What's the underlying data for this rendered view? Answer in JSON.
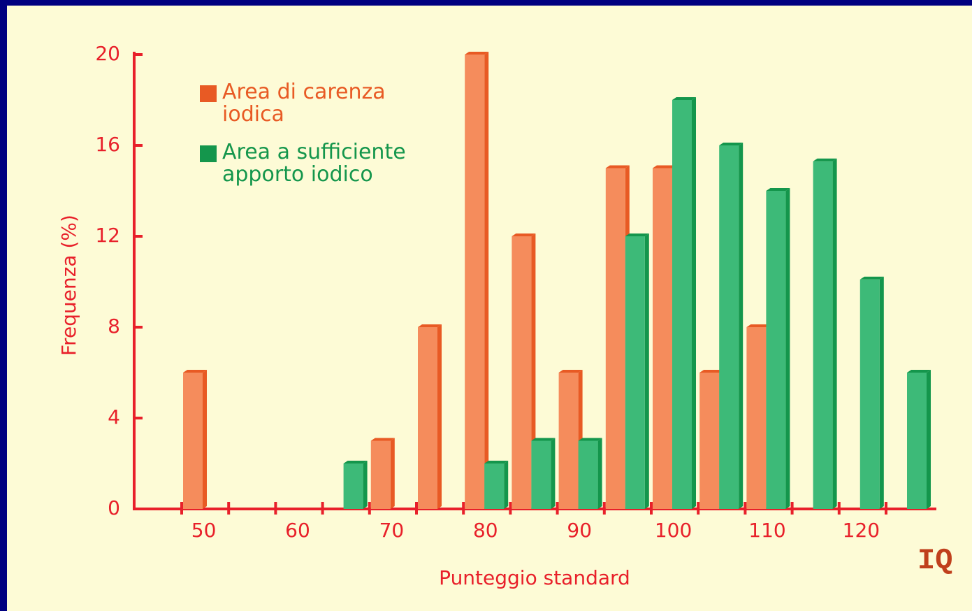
{
  "chart_data": {
    "type": "bar",
    "categories": [
      50,
      null,
      60,
      null,
      70,
      null,
      80,
      null,
      90,
      null,
      100,
      null,
      110,
      null,
      120,
      null
    ],
    "series": [
      {
        "name": "Area di carenza iodica",
        "color": "#f58c5c",
        "values": [
          6,
          null,
          null,
          null,
          3,
          8,
          20,
          12,
          6,
          15,
          15,
          6,
          8,
          null,
          null,
          null
        ]
      },
      {
        "name": "Area a sufficiente apporto iodico",
        "color": "#3dba78",
        "values": [
          null,
          null,
          null,
          2,
          null,
          null,
          2,
          3,
          3,
          12,
          18,
          16,
          14,
          15.3,
          10.1,
          6
        ]
      }
    ],
    "ylim": [
      0,
      20
    ],
    "yticks": [
      0,
      4,
      8,
      12,
      16,
      20
    ],
    "y_label": "Frequenza (%)",
    "x_label": "Punteggio standard",
    "annotation": "IQ",
    "legend": "top-left"
  }
}
